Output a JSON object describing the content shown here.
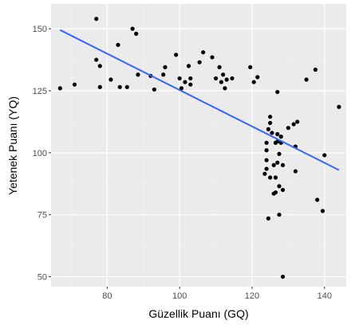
{
  "chart_data": {
    "type": "scatter",
    "title": "",
    "xlabel": "Güzellik Puanı (GQ)",
    "ylabel": "Yetenek Puanı (YQ)",
    "xlim": [
      64.5,
      146
    ],
    "ylim": [
      46,
      160
    ],
    "x_ticks": [
      80,
      100,
      120,
      140
    ],
    "y_ticks": [
      50,
      75,
      100,
      125,
      150
    ],
    "grid": true,
    "legend": "none",
    "colors": {
      "panel": "#ebebeb",
      "grid_major": "#ffffff",
      "grid_minor": "#f5f5f5",
      "point": "#000000",
      "trend": "#3366ff"
    },
    "points": [
      {
        "x": 67,
        "y": 126
      },
      {
        "x": 71,
        "y": 127.5
      },
      {
        "x": 77,
        "y": 137.5
      },
      {
        "x": 77,
        "y": 154
      },
      {
        "x": 78,
        "y": 126.5
      },
      {
        "x": 78,
        "y": 135
      },
      {
        "x": 81,
        "y": 129.5
      },
      {
        "x": 83,
        "y": 143.5
      },
      {
        "x": 83.5,
        "y": 126.5
      },
      {
        "x": 85.5,
        "y": 126.5
      },
      {
        "x": 87,
        "y": 150
      },
      {
        "x": 88,
        "y": 148
      },
      {
        "x": 88.5,
        "y": 131.5
      },
      {
        "x": 92,
        "y": 131
      },
      {
        "x": 93,
        "y": 125.5
      },
      {
        "x": 95.5,
        "y": 131.5
      },
      {
        "x": 96,
        "y": 134.5
      },
      {
        "x": 99,
        "y": 139.5
      },
      {
        "x": 100,
        "y": 130
      },
      {
        "x": 100.5,
        "y": 126
      },
      {
        "x": 101.5,
        "y": 128.5
      },
      {
        "x": 102.5,
        "y": 135
      },
      {
        "x": 103,
        "y": 130
      },
      {
        "x": 103,
        "y": 127.5
      },
      {
        "x": 105.5,
        "y": 136.5
      },
      {
        "x": 106.5,
        "y": 140.5
      },
      {
        "x": 109,
        "y": 138.5
      },
      {
        "x": 110,
        "y": 130
      },
      {
        "x": 111,
        "y": 134.5
      },
      {
        "x": 111.5,
        "y": 128.5
      },
      {
        "x": 112,
        "y": 131.5
      },
      {
        "x": 112.5,
        "y": 126
      },
      {
        "x": 113,
        "y": 129.5
      },
      {
        "x": 114.5,
        "y": 130
      },
      {
        "x": 119.5,
        "y": 134.5
      },
      {
        "x": 120.5,
        "y": 128.5
      },
      {
        "x": 121.5,
        "y": 130.5
      },
      {
        "x": 123.5,
        "y": 91.5
      },
      {
        "x": 124,
        "y": 93.5
      },
      {
        "x": 124,
        "y": 97
      },
      {
        "x": 124,
        "y": 101
      },
      {
        "x": 124,
        "y": 104
      },
      {
        "x": 124.5,
        "y": 73.5
      },
      {
        "x": 124.5,
        "y": 109.5
      },
      {
        "x": 125,
        "y": 90
      },
      {
        "x": 125,
        "y": 112
      },
      {
        "x": 125,
        "y": 114.5
      },
      {
        "x": 125.5,
        "y": 108
      },
      {
        "x": 126,
        "y": 83.5
      },
      {
        "x": 126,
        "y": 95
      },
      {
        "x": 126.5,
        "y": 84
      },
      {
        "x": 126.5,
        "y": 90
      },
      {
        "x": 126.5,
        "y": 104
      },
      {
        "x": 127,
        "y": 96
      },
      {
        "x": 127,
        "y": 104.5
      },
      {
        "x": 127,
        "y": 107.5
      },
      {
        "x": 127,
        "y": 124.5
      },
      {
        "x": 127.5,
        "y": 75
      },
      {
        "x": 127.5,
        "y": 86.5
      },
      {
        "x": 127.5,
        "y": 99.5
      },
      {
        "x": 128,
        "y": 104
      },
      {
        "x": 128,
        "y": 106.5
      },
      {
        "x": 128.5,
        "y": 50
      },
      {
        "x": 128.5,
        "y": 85
      },
      {
        "x": 128.5,
        "y": 95
      },
      {
        "x": 130,
        "y": 110
      },
      {
        "x": 131.5,
        "y": 111.5
      },
      {
        "x": 132,
        "y": 92.5
      },
      {
        "x": 132,
        "y": 102.5
      },
      {
        "x": 132.5,
        "y": 112.5
      },
      {
        "x": 135,
        "y": 129.5
      },
      {
        "x": 137.5,
        "y": 133.5
      },
      {
        "x": 138,
        "y": 81
      },
      {
        "x": 139.5,
        "y": 76.5
      },
      {
        "x": 140,
        "y": 99
      },
      {
        "x": 144,
        "y": 118.5
      }
    ],
    "trend_line": {
      "method": "linear",
      "x": [
        67,
        144
      ],
      "y": [
        149.5,
        93
      ]
    }
  }
}
